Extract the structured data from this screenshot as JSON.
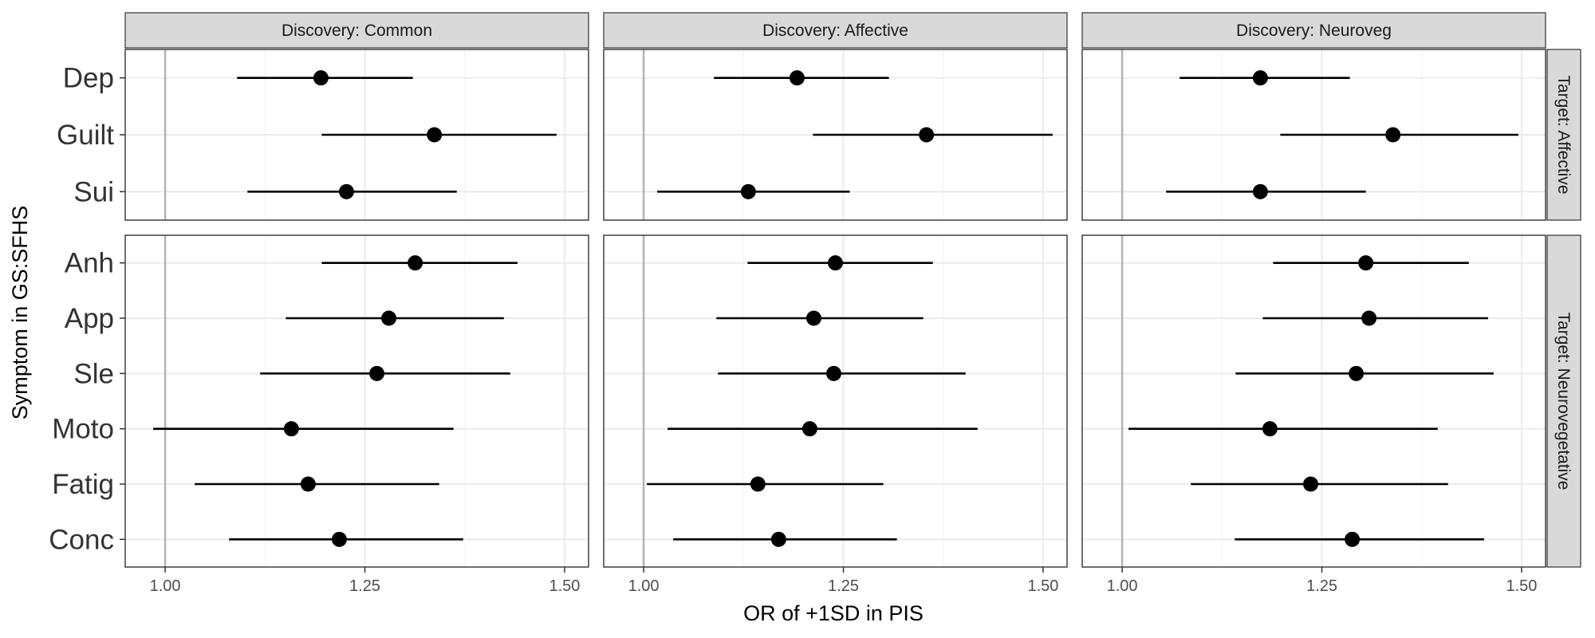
{
  "chart_data": {
    "type": "forest",
    "xlabel": "OR of +1SD in PIS",
    "ylabel": "Symptom in GS:SFHS",
    "xlim": [
      0.95,
      1.53
    ],
    "xticks": [
      1.0,
      1.25,
      1.5
    ],
    "xtick_labels": [
      "1.00",
      "1.25",
      "1.50"
    ],
    "reference_line": 1.0,
    "grid": true,
    "columns": [
      "Discovery: Common",
      "Discovery: Affective",
      "Discovery: Neuroveg"
    ],
    "rows": [
      {
        "label": "Target: Affective",
        "symptoms": [
          "Dep",
          "Guilt",
          "Sui"
        ]
      },
      {
        "label": "Target: Neurovegetative",
        "symptoms": [
          "Anh",
          "App",
          "Sle",
          "Moto",
          "Fatig",
          "Conc"
        ]
      }
    ],
    "estimates": [
      [
        [
          {
            "symptom": "Dep",
            "or": 1.195,
            "lo": 1.09,
            "hi": 1.31
          },
          {
            "symptom": "Guilt",
            "or": 1.337,
            "lo": 1.196,
            "hi": 1.49
          },
          {
            "symptom": "Sui",
            "or": 1.227,
            "lo": 1.103,
            "hi": 1.365
          }
        ],
        [
          {
            "symptom": "Dep",
            "or": 1.192,
            "lo": 1.088,
            "hi": 1.307
          },
          {
            "symptom": "Guilt",
            "or": 1.354,
            "lo": 1.212,
            "hi": 1.512
          },
          {
            "symptom": "Sui",
            "or": 1.131,
            "lo": 1.017,
            "hi": 1.258
          }
        ],
        [
          {
            "symptom": "Dep",
            "or": 1.173,
            "lo": 1.072,
            "hi": 1.285
          },
          {
            "symptom": "Guilt",
            "or": 1.339,
            "lo": 1.198,
            "hi": 1.496
          },
          {
            "symptom": "Sui",
            "or": 1.173,
            "lo": 1.055,
            "hi": 1.305
          }
        ]
      ],
      [
        [
          {
            "symptom": "Anh",
            "or": 1.313,
            "lo": 1.196,
            "hi": 1.441
          },
          {
            "symptom": "App",
            "or": 1.28,
            "lo": 1.151,
            "hi": 1.424
          },
          {
            "symptom": "Sle",
            "or": 1.265,
            "lo": 1.119,
            "hi": 1.432
          },
          {
            "symptom": "Moto",
            "or": 1.158,
            "lo": 0.985,
            "hi": 1.361
          },
          {
            "symptom": "Fatig",
            "or": 1.179,
            "lo": 1.037,
            "hi": 1.343
          },
          {
            "symptom": "Conc",
            "or": 1.218,
            "lo": 1.08,
            "hi": 1.373
          }
        ],
        [
          {
            "symptom": "Anh",
            "or": 1.24,
            "lo": 1.13,
            "hi": 1.362
          },
          {
            "symptom": "App",
            "or": 1.213,
            "lo": 1.091,
            "hi": 1.35
          },
          {
            "symptom": "Sle",
            "or": 1.238,
            "lo": 1.093,
            "hi": 1.403
          },
          {
            "symptom": "Moto",
            "or": 1.208,
            "lo": 1.03,
            "hi": 1.418
          },
          {
            "symptom": "Fatig",
            "or": 1.143,
            "lo": 1.004,
            "hi": 1.3
          },
          {
            "symptom": "Conc",
            "or": 1.169,
            "lo": 1.037,
            "hi": 1.317
          }
        ],
        [
          {
            "symptom": "Anh",
            "or": 1.305,
            "lo": 1.189,
            "hi": 1.434
          },
          {
            "symptom": "App",
            "or": 1.309,
            "lo": 1.176,
            "hi": 1.458
          },
          {
            "symptom": "Sle",
            "or": 1.293,
            "lo": 1.142,
            "hi": 1.465
          },
          {
            "symptom": "Moto",
            "or": 1.185,
            "lo": 1.008,
            "hi": 1.395
          },
          {
            "symptom": "Fatig",
            "or": 1.236,
            "lo": 1.086,
            "hi": 1.408
          },
          {
            "symptom": "Conc",
            "or": 1.288,
            "lo": 1.141,
            "hi": 1.453
          }
        ]
      ]
    ]
  }
}
